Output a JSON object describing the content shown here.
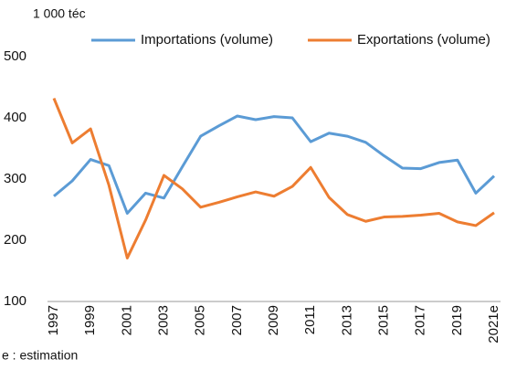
{
  "chart_data": {
    "type": "line",
    "y_label": "1 000 téc",
    "note": "e : estimation",
    "categories": [
      "1997",
      null,
      "1999",
      null,
      "2001",
      null,
      "2003",
      null,
      "2005",
      null,
      "2007",
      null,
      "2009",
      null,
      "2011",
      null,
      "2013",
      null,
      "2015",
      null,
      "2017",
      null,
      "2019",
      null,
      "2021e"
    ],
    "series": [
      {
        "name": "Importations (volume)",
        "color": "#5b9bd5",
        "values": [
          272,
          297,
          332,
          322,
          244,
          277,
          269,
          320,
          370,
          387,
          403,
          397,
          402,
          400,
          361,
          375,
          370,
          360,
          338,
          318,
          317,
          327,
          331,
          277,
          305
        ]
      },
      {
        "name": "Exportations (volume)",
        "color": "#ed7d31",
        "values": [
          432,
          359,
          382,
          290,
          171,
          233,
          306,
          284,
          254,
          262,
          271,
          279,
          272,
          288,
          319,
          270,
          242,
          231,
          238,
          239,
          241,
          244,
          230,
          224,
          245
        ]
      }
    ],
    "ylim": [
      100,
      500
    ],
    "yticks": [
      100,
      200,
      300,
      400,
      500
    ],
    "grid": false
  }
}
